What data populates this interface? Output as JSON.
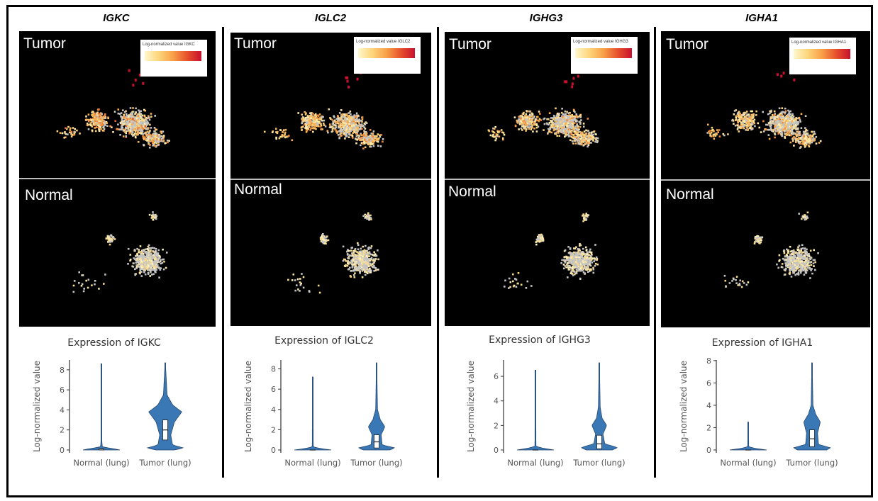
{
  "panels": [
    {
      "gene": "IGKC",
      "tumor_label": "Tumor",
      "normal_label": "Normal",
      "legend_title": "Log-normalized value IGKC",
      "violin_title": "Expression of IGKC"
    },
    {
      "gene": "IGLC2",
      "tumor_label": "Tumor",
      "normal_label": "Normal",
      "legend_title": "Log-normalized value IGLC2",
      "violin_title": "Expression of IGLC2"
    },
    {
      "gene": "IGHG3",
      "tumor_label": "Tumor",
      "normal_label": "Normal",
      "legend_title": "Log-normalized value IGHG3",
      "violin_title": "Expression of IGHG3"
    },
    {
      "gene": "IGHA1",
      "tumor_label": "Tumor",
      "normal_label": "Normal",
      "legend_title": "Log-normalized value IGHA1",
      "violin_title": "Expression of IGHA1"
    }
  ],
  "colors": {
    "violin_fill": "#3a78b5",
    "low": "#fff8cc",
    "high": "#c8102e",
    "zero": "#bdbdbd"
  },
  "chart_data": [
    {
      "type": "violin",
      "title": "Expression of IGKC",
      "ylabel": "Log-normalized value",
      "categories": [
        "Normal (lung)",
        "Tumor (lung)"
      ],
      "yticks": [
        0,
        2,
        4,
        6,
        8
      ],
      "ylim": [
        0,
        8.7
      ],
      "series": [
        {
          "max": 8.6,
          "median": 0.1,
          "q1": 0,
          "q3": 0.1,
          "dens": [
            [
              0,
              1
            ],
            [
              0.15,
              0.6
            ],
            [
              0.3,
              0.05
            ],
            [
              1,
              0.02
            ],
            [
              8.6,
              0.01
            ]
          ]
        },
        {
          "max": 8.7,
          "median": 2.0,
          "q1": 1.0,
          "q3": 3.0,
          "dens": [
            [
              0,
              0.5
            ],
            [
              0.2,
              1
            ],
            [
              0.5,
              0.4
            ],
            [
              1.5,
              0.3
            ],
            [
              2.8,
              0.5
            ],
            [
              3.8,
              0.9
            ],
            [
              4.5,
              0.4
            ],
            [
              5.5,
              0.1
            ],
            [
              8.7,
              0.01
            ]
          ]
        }
      ]
    },
    {
      "type": "violin",
      "title": "Expression of IGLC2",
      "ylabel": "Log-normalized value",
      "categories": [
        "Normal (lung)",
        "Tumor (lung)"
      ],
      "yticks": [
        0,
        2,
        4,
        6,
        8
      ],
      "ylim": [
        0,
        8.6
      ],
      "series": [
        {
          "max": 7.2,
          "median": 0,
          "q1": 0,
          "q3": 0,
          "dens": [
            [
              0,
              1
            ],
            [
              0.15,
              0.4
            ],
            [
              0.3,
              0.03
            ],
            [
              7.2,
              0.01
            ]
          ]
        },
        {
          "max": 8.6,
          "median": 0.8,
          "q1": 0.2,
          "q3": 1.5,
          "dens": [
            [
              0,
              0.7
            ],
            [
              0.2,
              1
            ],
            [
              0.5,
              0.3
            ],
            [
              1.5,
              0.25
            ],
            [
              2.3,
              0.45
            ],
            [
              3,
              0.2
            ],
            [
              4,
              0.05
            ],
            [
              8.6,
              0.01
            ]
          ]
        }
      ]
    },
    {
      "type": "violin",
      "title": "Expression of IGHG3",
      "ylabel": "Log-normalized value",
      "categories": [
        "Normal (lung)",
        "Tumor (lung)"
      ],
      "yticks": [
        0,
        2,
        4,
        6
      ],
      "ylim": [
        0,
        7.1
      ],
      "series": [
        {
          "max": 6.5,
          "median": 0,
          "q1": 0,
          "q3": 0,
          "dens": [
            [
              0,
              1
            ],
            [
              0.15,
              0.4
            ],
            [
              0.3,
              0.03
            ],
            [
              6.5,
              0.01
            ]
          ]
        },
        {
          "max": 7.1,
          "median": 0.5,
          "q1": 0.1,
          "q3": 1.2,
          "dens": [
            [
              0,
              0.7
            ],
            [
              0.2,
              1
            ],
            [
              0.5,
              0.3
            ],
            [
              1.3,
              0.2
            ],
            [
              2,
              0.4
            ],
            [
              2.6,
              0.15
            ],
            [
              3.5,
              0.05
            ],
            [
              7.1,
              0.01
            ]
          ]
        }
      ]
    },
    {
      "type": "violin",
      "title": "Expression of IGHA1",
      "ylabel": "Log-normalized value",
      "categories": [
        "Normal (lung)",
        "Tumor (lung)"
      ],
      "yticks": [
        0,
        2,
        4,
        6,
        8
      ],
      "ylim": [
        0,
        7.8
      ],
      "series": [
        {
          "max": 2.5,
          "median": 0,
          "q1": 0,
          "q3": 0,
          "dens": [
            [
              0,
              1
            ],
            [
              0.15,
              0.35
            ],
            [
              0.3,
              0.03
            ],
            [
              2.5,
              0.01
            ]
          ]
        },
        {
          "max": 7.8,
          "median": 1.0,
          "q1": 0.3,
          "q3": 1.8,
          "dens": [
            [
              0,
              0.8
            ],
            [
              0.2,
              1
            ],
            [
              0.5,
              0.35
            ],
            [
              1.5,
              0.3
            ],
            [
              2.5,
              0.45
            ],
            [
              3.2,
              0.2
            ],
            [
              4,
              0.05
            ],
            [
              7.8,
              0.01
            ]
          ]
        }
      ]
    }
  ]
}
